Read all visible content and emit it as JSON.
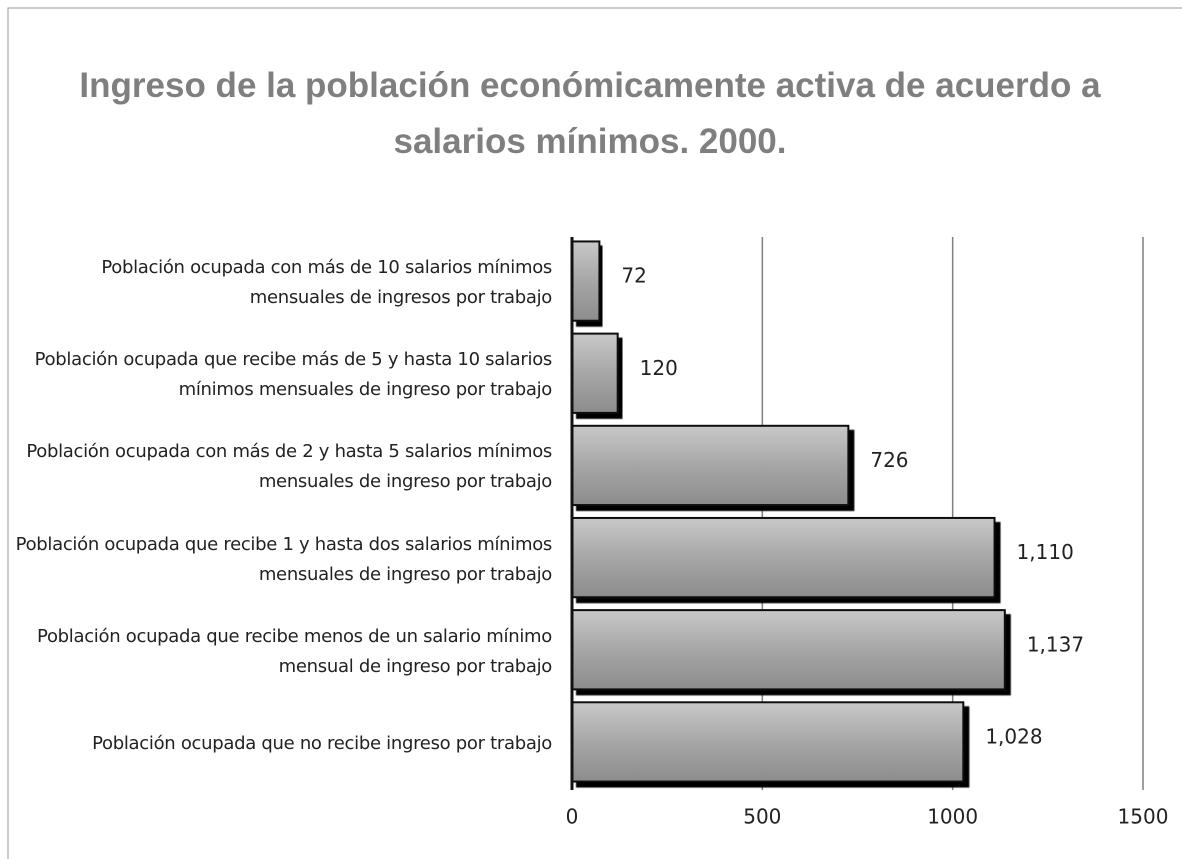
{
  "chart_data": {
    "type": "bar",
    "orientation": "horizontal",
    "title": "Ingreso de la población económicamente activa de acuerdo a salarios mínimos. 2000.",
    "categories": [
      "Población ocupada con más de 10 salarios mínimos mensuales de ingresos por trabajo",
      "Población ocupada que recibe más de 5 y hasta 10 salarios mínimos mensuales de ingreso por trabajo",
      "Población ocupada con más de 2 y hasta 5 salarios mínimos mensuales de ingreso por trabajo",
      "Población ocupada que recibe 1 y hasta dos salarios mínimos mensuales de ingreso por trabajo",
      "Población ocupada que recibe menos de un salario mínimo mensual de ingreso por trabajo",
      "Población ocupada que no recibe ingreso por trabajo"
    ],
    "values": [
      72,
      120,
      726,
      1110,
      1137,
      1028
    ],
    "value_labels": [
      "72",
      "120",
      "726",
      "1,110",
      "1,137",
      "1,028"
    ],
    "color": "#a6a6a6",
    "xlim": [
      0,
      1500
    ],
    "xticks": [
      0,
      500,
      1000,
      1500
    ],
    "grid": true
  }
}
